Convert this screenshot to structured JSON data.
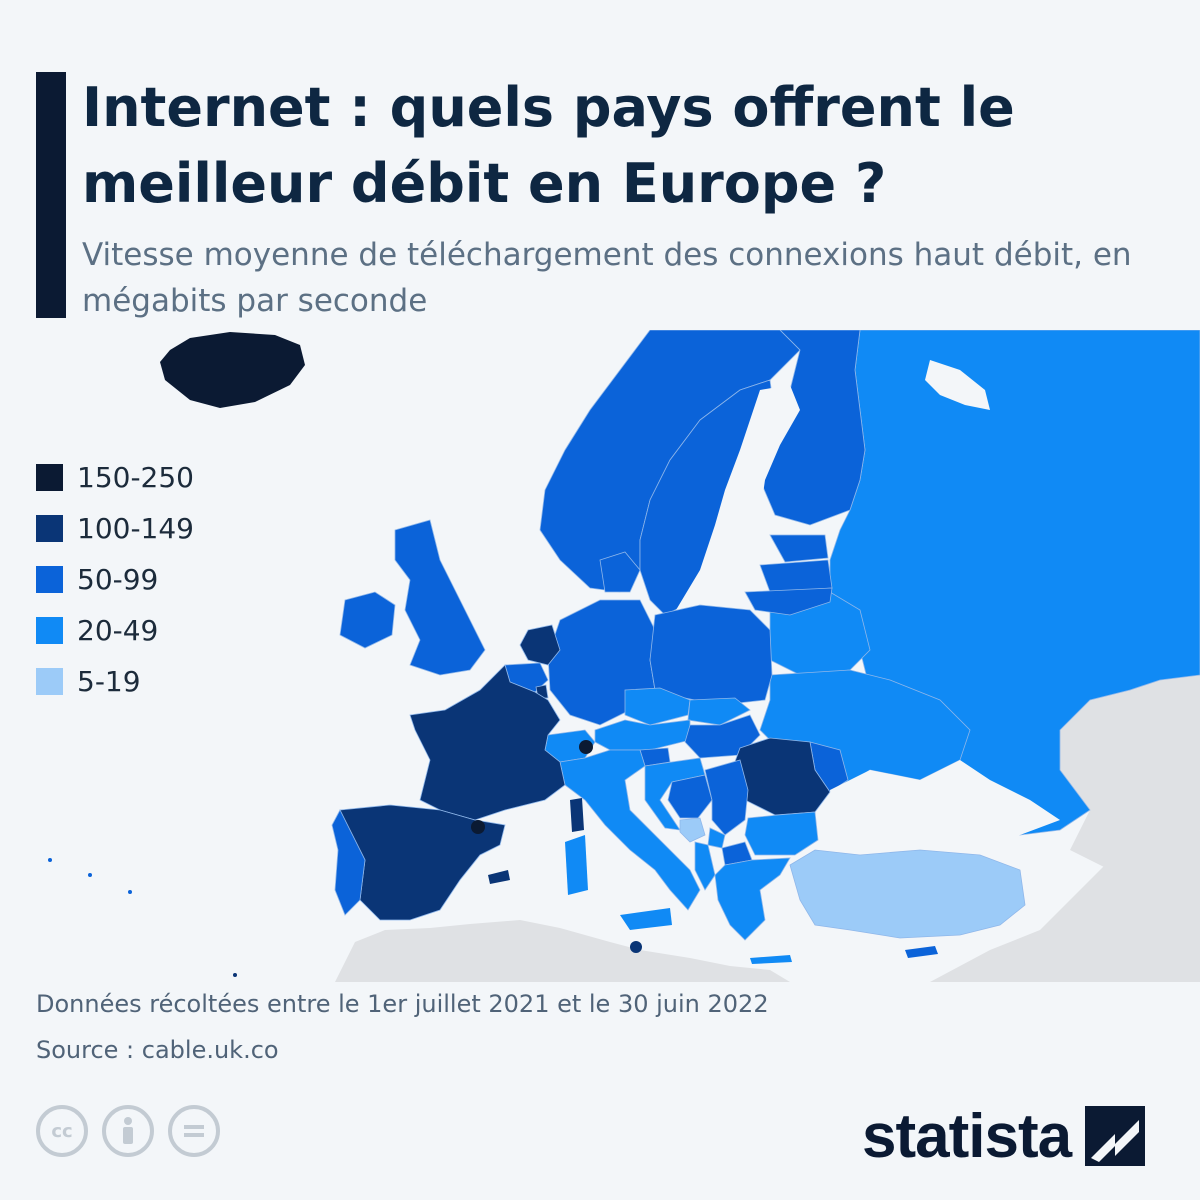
{
  "title": "Internet : quels pays offrent le meilleur débit en Europe ?",
  "subtitle": "Vitesse moyenne de téléchargement des connexions haut débit, en mégabits par seconde",
  "legend": [
    {
      "label": "150-250",
      "color": "#0b1a33"
    },
    {
      "label": "100-149",
      "color": "#0a3576"
    },
    {
      "label": "50-99",
      "color": "#0b63d9"
    },
    {
      "label": "20-49",
      "color": "#108af5"
    },
    {
      "label": "5-19",
      "color": "#9ccbf8"
    }
  ],
  "colors": {
    "background": "#f3f6f9",
    "sea": "#f3f6f9",
    "no_data": "#dfe1e4",
    "border": "#8fb7ea"
  },
  "map_classes": {
    "150-250": [
      "Islande",
      "Liechtenstein",
      "Andorre",
      "Monaco"
    ],
    "100-149": [
      "France",
      "Espagne",
      "Pays-Bas",
      "Roumanie",
      "Malte",
      "Luxembourg"
    ],
    "50-99": [
      "Royaume-Uni",
      "Irlande",
      "Portugal",
      "Belgique",
      "Allemagne",
      "Danemark",
      "Norvège",
      "Suède",
      "Finlande",
      "Pologne",
      "Lituanie",
      "Lettonie",
      "Estonie",
      "Hongrie",
      "Moldavie",
      "Slovénie",
      "Bosnie-Herzégovine",
      "Serbie",
      "Macédoine du Nord",
      "Chypre"
    ],
    "20-49": [
      "Italie",
      "Suisse",
      "Autriche",
      "République tchèque",
      "Slovaquie",
      "Croatie",
      "Grèce",
      "Bulgarie",
      "Ukraine",
      "Biélorussie",
      "Russie",
      "Albanie",
      "Kosovo"
    ],
    "5-19": [
      "Turquie",
      "Monténégro"
    ]
  },
  "footer": {
    "note": "Données récoltées entre le 1er juillet 2021 et le 30 juin 2022",
    "source": "Source : cable.uk.co"
  },
  "license_icons": [
    "cc-icon",
    "attribution-icon",
    "no-derivatives-icon"
  ],
  "brand": "statista"
}
